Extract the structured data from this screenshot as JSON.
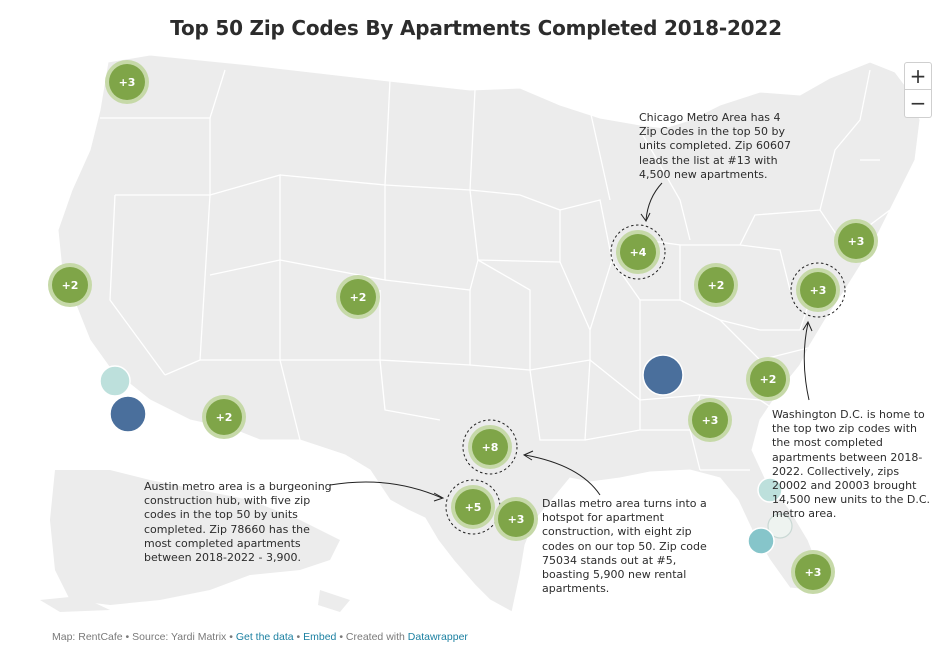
{
  "title": "Top 50 Zip Codes By Apartments Completed 2018-2022",
  "zoom": {
    "in_label": "+",
    "out_label": "−"
  },
  "colors": {
    "land": "#ececec",
    "state_border": "#ffffff",
    "cluster_fill": "#7fa548",
    "cluster_halo": "#c6d9a8",
    "dark_blue": "#4a6f9c",
    "light_teal": "#bde0dc",
    "mid_teal": "#86c5ca"
  },
  "clusters": [
    {
      "name": "washington",
      "label": "+3",
      "highlight": false
    },
    {
      "name": "california-north",
      "label": "+2",
      "highlight": false
    },
    {
      "name": "colorado",
      "label": "+2",
      "highlight": false
    },
    {
      "name": "arizona",
      "label": "+2",
      "highlight": false
    },
    {
      "name": "chicago",
      "label": "+4",
      "highlight": true
    },
    {
      "name": "ohio",
      "label": "+2",
      "highlight": false
    },
    {
      "name": "new-york",
      "label": "+3",
      "highlight": false
    },
    {
      "name": "washington-dc",
      "label": "+3",
      "highlight": true
    },
    {
      "name": "north-carolina",
      "label": "+2",
      "highlight": false
    },
    {
      "name": "georgia",
      "label": "+3",
      "highlight": false
    },
    {
      "name": "dallas",
      "label": "+8",
      "highlight": true
    },
    {
      "name": "austin",
      "label": "+5",
      "highlight": true
    },
    {
      "name": "houston",
      "label": "+3",
      "highlight": false
    },
    {
      "name": "miami",
      "label": "+3",
      "highlight": false
    }
  ],
  "annotations": {
    "chicago": [
      "Chicago Metro Area has 4",
      "Zip Codes in the top 50 by",
      "units completed. Zip 60607",
      "leads the list at #13 with",
      "4,500 new apartments."
    ],
    "dc": [
      "Washington D.C. is home to",
      "the top two zip codes with",
      "the most completed",
      "apartments between 2018-",
      "2022. Collectively, zips",
      "20002 and 20003 brought",
      "14,500 new units to the D.C.",
      "metro area."
    ],
    "austin": [
      "Austin metro area is a burgeoning",
      "construction hub, with five zip",
      "codes in the top 50 by units",
      "completed. Zip 78660 has the",
      "most completed apartments",
      "between 2018-2022 - 3,900."
    ],
    "dallas": [
      "Dallas metro area turns into a",
      "hotspot for apartment",
      "construction, with eight zip",
      "codes on our top 50. Zip code",
      "75034 stands out at #5,",
      "boasting 5,900 new rental",
      "apartments."
    ]
  },
  "footer": {
    "map_credit": "Map: RentCafe",
    "sep": " • ",
    "source": "Source: Yardi Matrix",
    "get_data": "Get the data",
    "embed": "Embed",
    "created": "Created with ",
    "datawrapper": "Datawrapper"
  }
}
